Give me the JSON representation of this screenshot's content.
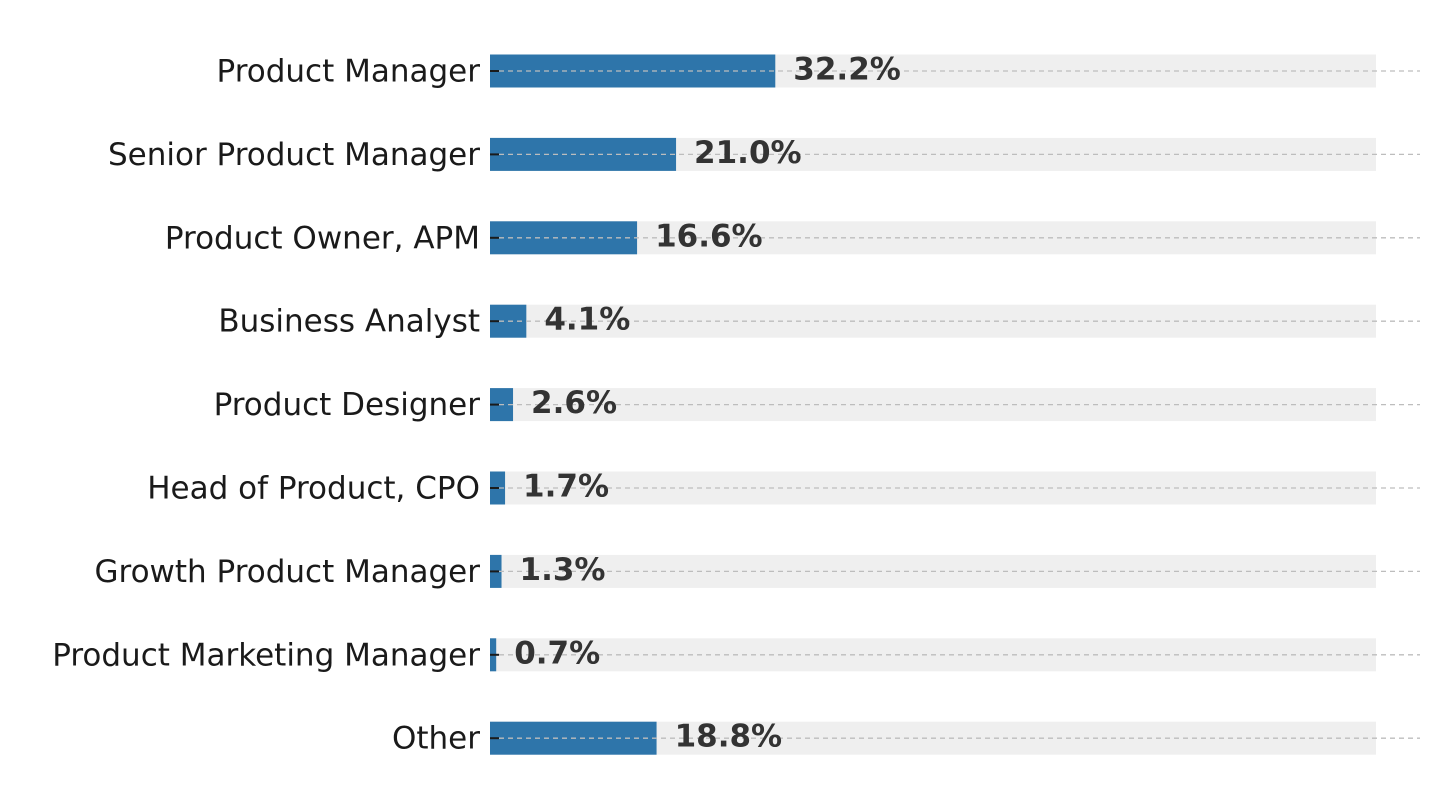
{
  "chart_data": {
    "type": "bar",
    "orientation": "horizontal",
    "categories": [
      "Product Manager",
      "Senior Product Manager",
      "Product Owner, APM",
      "Business Analyst",
      "Product Designer",
      "Head of Product, CPO",
      "Growth Product Manager",
      "Product Marketing Manager",
      "Other"
    ],
    "values": [
      32.2,
      21.0,
      16.6,
      4.1,
      2.6,
      1.7,
      1.3,
      0.7,
      18.8
    ],
    "value_labels": [
      "32.2%",
      "21.0%",
      "16.6%",
      "4.1%",
      "2.6%",
      "1.7%",
      "1.3%",
      "0.7%",
      "18.8%"
    ],
    "value_unit": "%",
    "xlim": [
      0,
      100
    ],
    "background_track": true,
    "title": "",
    "xlabel": "",
    "ylabel": "",
    "grid": "horizontal dashed",
    "colors": {
      "bar": "#2e75aa",
      "track": "#efefef",
      "grid": "#bdbdbd"
    }
  }
}
